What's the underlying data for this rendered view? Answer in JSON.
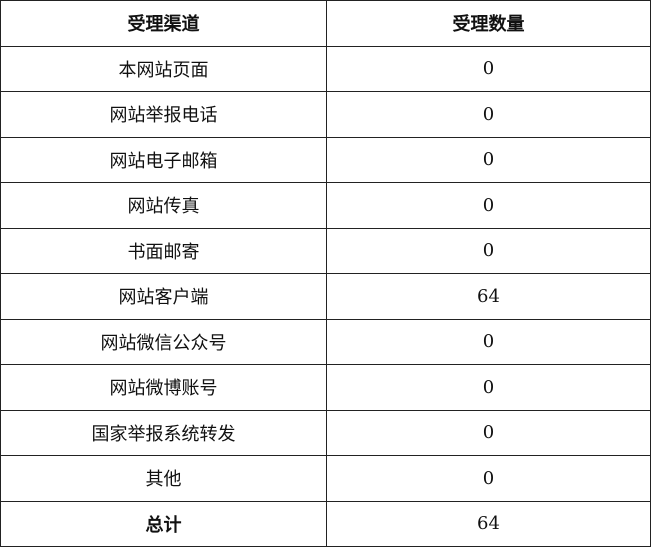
{
  "headers": [
    "受理渠道",
    "受理数量"
  ],
  "rows": [
    {
      "channel": "本网站页面",
      "count": "0"
    },
    {
      "channel": "网站举报电话",
      "count": "0"
    },
    {
      "channel": "网站电子邮箱",
      "count": "0"
    },
    {
      "channel": "网站传真",
      "count": "0"
    },
    {
      "channel": "书面邮寄",
      "count": "0"
    },
    {
      "channel": "网站客户端",
      "count": "64"
    },
    {
      "channel": "网站微信公众号",
      "count": "0"
    },
    {
      "channel": "网站微博账号",
      "count": "0"
    },
    {
      "channel": "国家举报系统转发",
      "count": "0"
    },
    {
      "channel": "其他",
      "count": "0"
    }
  ],
  "total": {
    "label": "总计",
    "count": "64"
  }
}
